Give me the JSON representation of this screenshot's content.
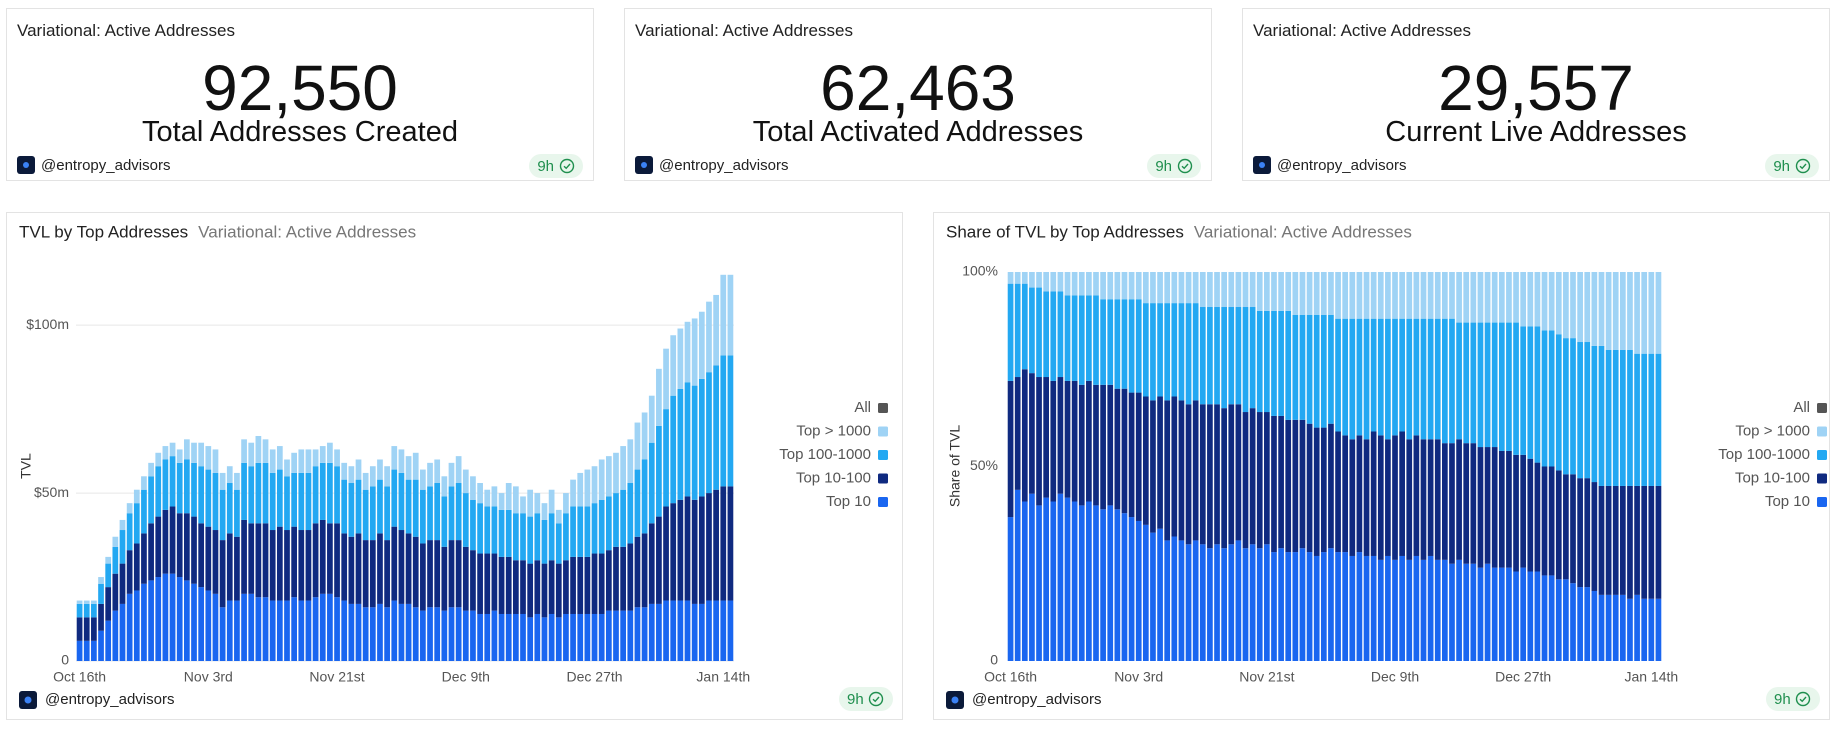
{
  "cards": [
    {
      "title": "Variational: Active Addresses",
      "value": "92,550",
      "label": "Total Addresses Created",
      "source": "@entropy_advisors",
      "age": "9h"
    },
    {
      "title": "Variational: Active Addresses",
      "value": "62,463",
      "label": "Total Activated Addresses",
      "source": "@entropy_advisors",
      "age": "9h"
    },
    {
      "title": "Variational: Active Addresses",
      "value": "29,557",
      "label": "Current Live Addresses",
      "source": "@entropy_advisors",
      "age": "9h"
    }
  ],
  "chart_data": [
    {
      "type": "bar",
      "stacked": true,
      "title": "TVL by Top Addresses",
      "subtitle": "Variational: Active Addresses",
      "ylabel": "TVL",
      "source": "@entropy_advisors",
      "age": "9h",
      "grid": true,
      "ylim": [
        0,
        120
      ],
      "yticks": [
        0,
        {
          "value": 50,
          "label": "$50m"
        },
        {
          "value": 100,
          "label": "$100m"
        }
      ],
      "categories": [
        "Oct 16th",
        null,
        null,
        null,
        null,
        null,
        null,
        null,
        null,
        null,
        null,
        null,
        null,
        null,
        null,
        null,
        null,
        null,
        "Nov 3rd",
        null,
        null,
        null,
        null,
        null,
        null,
        null,
        null,
        null,
        null,
        null,
        null,
        null,
        null,
        null,
        null,
        null,
        "Nov 21st",
        null,
        null,
        null,
        null,
        null,
        null,
        null,
        null,
        null,
        null,
        null,
        null,
        null,
        null,
        null,
        null,
        null,
        "Dec 9th",
        null,
        null,
        null,
        null,
        null,
        null,
        null,
        null,
        null,
        null,
        null,
        null,
        null,
        null,
        null,
        null,
        null,
        "Dec 27th",
        null,
        null,
        null,
        null,
        null,
        null,
        null,
        null,
        null,
        null,
        null,
        null,
        null,
        null,
        null,
        null,
        null,
        "Jan 14th",
        null
      ],
      "series": [
        {
          "name": "All",
          "color": "#555555"
        },
        {
          "name": "Top > 1000",
          "color": "#9fd3f5",
          "values": [
            1,
            1,
            1,
            2,
            2,
            3,
            3,
            3,
            4,
            4,
            4,
            4,
            4,
            4,
            4,
            6,
            6,
            7,
            7,
            7,
            5,
            5,
            5,
            7,
            7,
            8,
            7,
            7,
            7,
            5,
            6,
            7,
            7,
            5,
            5,
            6,
            5,
            5,
            5,
            6,
            5,
            6,
            6,
            6,
            7,
            7,
            7,
            8,
            6,
            7,
            7,
            6,
            7,
            8,
            7,
            7,
            6,
            5,
            6,
            5,
            8,
            8,
            5,
            8,
            6,
            5,
            7,
            4,
            6,
            8,
            10,
            11,
            11,
            12,
            12,
            12,
            13,
            13,
            14,
            14,
            14,
            17,
            18,
            18,
            18,
            18,
            20,
            20,
            21,
            21,
            24,
            24
          ]
        },
        {
          "name": "Top 100-1000",
          "color": "#23a8f2",
          "values": [
            4,
            4,
            4,
            6,
            7,
            8,
            10,
            11,
            12,
            13,
            14,
            15,
            15,
            15,
            15,
            16,
            16,
            17,
            17,
            17,
            15,
            15,
            14,
            17,
            17,
            18,
            18,
            17,
            17,
            16,
            16,
            17,
            17,
            17,
            17,
            18,
            17,
            16,
            16,
            16,
            15,
            16,
            16,
            16,
            17,
            17,
            16,
            17,
            16,
            16,
            17,
            15,
            16,
            17,
            16,
            15,
            15,
            14,
            14,
            14,
            14,
            14,
            14,
            14,
            14,
            13,
            14,
            12,
            14,
            15,
            15,
            15,
            15,
            16,
            16,
            16,
            17,
            18,
            20,
            22,
            24,
            27,
            29,
            32,
            33,
            34,
            34,
            35,
            36,
            37,
            39,
            39
          ]
        },
        {
          "name": "Top 10-100",
          "color": "#0f2a80",
          "values": [
            7,
            7,
            7,
            8,
            10,
            11,
            12,
            13,
            14,
            15,
            17,
            18,
            19,
            20,
            19,
            20,
            20,
            19,
            19,
            19,
            20,
            20,
            19,
            22,
            21,
            22,
            22,
            21,
            22,
            21,
            21,
            21,
            21,
            22,
            22,
            21,
            22,
            20,
            20,
            21,
            20,
            20,
            21,
            20,
            22,
            22,
            21,
            21,
            20,
            20,
            20,
            19,
            20,
            20,
            19,
            18,
            18,
            18,
            17,
            17,
            17,
            16,
            16,
            16,
            16,
            16,
            16,
            16,
            16,
            17,
            17,
            17,
            18,
            18,
            18,
            19,
            19,
            20,
            21,
            22,
            24,
            26,
            28,
            29,
            30,
            31,
            31,
            32,
            32,
            33,
            34,
            34
          ]
        },
        {
          "name": "Top 10",
          "color": "#1a66f0",
          "values": [
            6,
            6,
            6,
            9,
            12,
            15,
            17,
            20,
            21,
            23,
            24,
            25,
            26,
            26,
            25,
            24,
            23,
            22,
            21,
            20,
            16,
            18,
            18,
            20,
            20,
            19,
            19,
            18,
            18,
            18,
            19,
            18,
            18,
            19,
            20,
            20,
            19,
            18,
            17,
            17,
            16,
            16,
            17,
            16,
            18,
            17,
            17,
            16,
            15,
            16,
            16,
            15,
            16,
            16,
            15,
            15,
            14,
            14,
            15,
            14,
            14,
            14,
            14,
            13,
            14,
            13,
            14,
            13,
            14,
            14,
            14,
            14,
            14,
            14,
            15,
            15,
            15,
            15,
            16,
            16,
            17,
            17,
            18,
            18,
            18,
            18,
            17,
            17,
            18,
            18,
            18,
            18
          ]
        }
      ]
    },
    {
      "type": "bar",
      "stacked": true,
      "title": "Share of TVL by Top Addresses",
      "subtitle": "Variational: Active Addresses",
      "ylabel": "Share of TVL",
      "source": "@entropy_advisors",
      "age": "9h",
      "grid": false,
      "ylim": [
        0,
        100
      ],
      "yticks": [
        0,
        {
          "value": 50,
          "label": "50%"
        },
        {
          "value": 100,
          "label": "100%"
        }
      ],
      "categories": [
        "Oct 16th",
        null,
        null,
        null,
        null,
        null,
        null,
        null,
        null,
        null,
        null,
        null,
        null,
        null,
        null,
        null,
        null,
        null,
        "Nov 3rd",
        null,
        null,
        null,
        null,
        null,
        null,
        null,
        null,
        null,
        null,
        null,
        null,
        null,
        null,
        null,
        null,
        null,
        "Nov 21st",
        null,
        null,
        null,
        null,
        null,
        null,
        null,
        null,
        null,
        null,
        null,
        null,
        null,
        null,
        null,
        null,
        null,
        "Dec 9th",
        null,
        null,
        null,
        null,
        null,
        null,
        null,
        null,
        null,
        null,
        null,
        null,
        null,
        null,
        null,
        null,
        null,
        "Dec 27th",
        null,
        null,
        null,
        null,
        null,
        null,
        null,
        null,
        null,
        null,
        null,
        null,
        null,
        null,
        null,
        null,
        null,
        "Jan 14th",
        null
      ],
      "series": [
        {
          "name": "All",
          "color": "#555555"
        },
        {
          "name": "Top > 1000",
          "color": "#9fd3f5",
          "values": [
            3,
            3,
            3,
            4,
            4,
            5,
            5,
            5,
            6,
            6,
            6,
            6,
            6,
            7,
            7,
            7,
            7,
            7,
            7,
            8,
            8,
            8,
            8,
            8,
            8,
            8,
            8,
            9,
            9,
            9,
            9,
            9,
            9,
            9,
            9,
            10,
            10,
            10,
            10,
            10,
            11,
            11,
            11,
            11,
            11,
            11,
            12,
            12,
            12,
            12,
            12,
            12,
            12,
            12,
            12,
            12,
            12,
            12,
            12,
            12,
            12,
            12,
            12,
            13,
            13,
            13,
            13,
            13,
            13,
            13,
            13,
            13,
            14,
            14,
            14,
            15,
            15,
            16,
            17,
            17,
            18,
            18,
            19,
            19,
            20,
            20,
            20,
            20,
            21,
            21,
            21,
            21
          ]
        },
        {
          "name": "Top 100-1000",
          "color": "#23a8f2",
          "values": [
            25,
            24,
            22,
            22,
            23,
            22,
            23,
            22,
            22,
            22,
            23,
            22,
            23,
            22,
            22,
            23,
            23,
            24,
            24,
            24,
            25,
            24,
            25,
            24,
            25,
            26,
            25,
            25,
            25,
            25,
            26,
            25,
            25,
            27,
            26,
            26,
            26,
            27,
            27,
            28,
            27,
            27,
            28,
            29,
            29,
            28,
            29,
            30,
            31,
            30,
            31,
            29,
            30,
            31,
            30,
            29,
            31,
            30,
            31,
            31,
            31,
            32,
            32,
            30,
            31,
            31,
            32,
            32,
            32,
            33,
            33,
            34,
            33,
            34,
            35,
            35,
            35,
            35,
            35,
            35,
            35,
            35,
            35,
            36,
            35,
            35,
            35,
            35,
            34,
            34,
            34,
            34
          ]
        },
        {
          "name": "Top 10-100",
          "color": "#0f2a80",
          "values": [
            35,
            29,
            34,
            31,
            33,
            31,
            31,
            30,
            30,
            31,
            31,
            31,
            31,
            32,
            31,
            31,
            32,
            32,
            33,
            33,
            34,
            34,
            36,
            36,
            36,
            36,
            36,
            36,
            37,
            36,
            36,
            36,
            35,
            35,
            35,
            35,
            34,
            35,
            34,
            34,
            34,
            33,
            33,
            33,
            32,
            32,
            31,
            30,
            30,
            30,
            30,
            32,
            32,
            30,
            32,
            32,
            31,
            31,
            31,
            30,
            31,
            30,
            31,
            31,
            31,
            31,
            31,
            30,
            31,
            30,
            30,
            30,
            29,
            29,
            28,
            28,
            28,
            28,
            27,
            28,
            28,
            28,
            28,
            28,
            28,
            28,
            28,
            29,
            28,
            29,
            29,
            29
          ]
        },
        {
          "name": "Top 10",
          "color": "#1a66f0",
          "values": [
            37,
            44,
            41,
            43,
            40,
            42,
            41,
            43,
            42,
            41,
            40,
            41,
            40,
            39,
            40,
            39,
            38,
            37,
            36,
            35,
            33,
            34,
            31,
            32,
            31,
            30,
            31,
            30,
            29,
            30,
            29,
            30,
            31,
            29,
            30,
            29,
            30,
            28,
            29,
            28,
            28,
            29,
            28,
            27,
            28,
            29,
            28,
            28,
            27,
            28,
            27,
            27,
            26,
            27,
            26,
            27,
            26,
            27,
            26,
            27,
            26,
            26,
            25,
            26,
            25,
            25,
            24,
            25,
            24,
            24,
            24,
            23,
            24,
            23,
            23,
            22,
            22,
            21,
            21,
            20,
            19,
            19,
            18,
            17,
            17,
            17,
            17,
            16,
            17,
            16,
            16,
            16
          ]
        }
      ]
    }
  ]
}
